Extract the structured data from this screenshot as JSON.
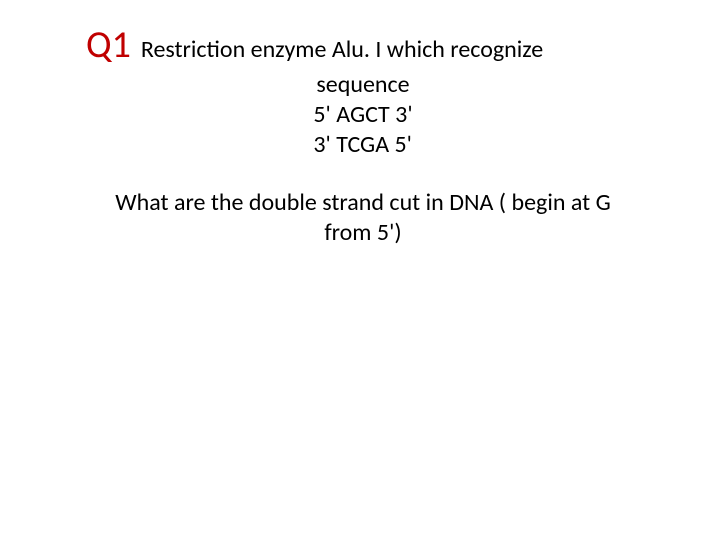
{
  "colors": {
    "q1_color": "#c00000",
    "text_color": "#000000",
    "background": "#ffffff"
  },
  "typography": {
    "q1_fontsize": 38,
    "body_fontsize": 24,
    "font_family": "Calibri"
  },
  "q1_label": "Q1",
  "line1_text": "Restriction enzyme Alu. I which recognize",
  "line2_text": "sequence",
  "seq1": "5' AGCT 3'",
  "seq2": "3' TCGA 5'",
  "question_line1": "What are the double strand cut in DNA ( begin at G",
  "question_line2": "from 5')"
}
